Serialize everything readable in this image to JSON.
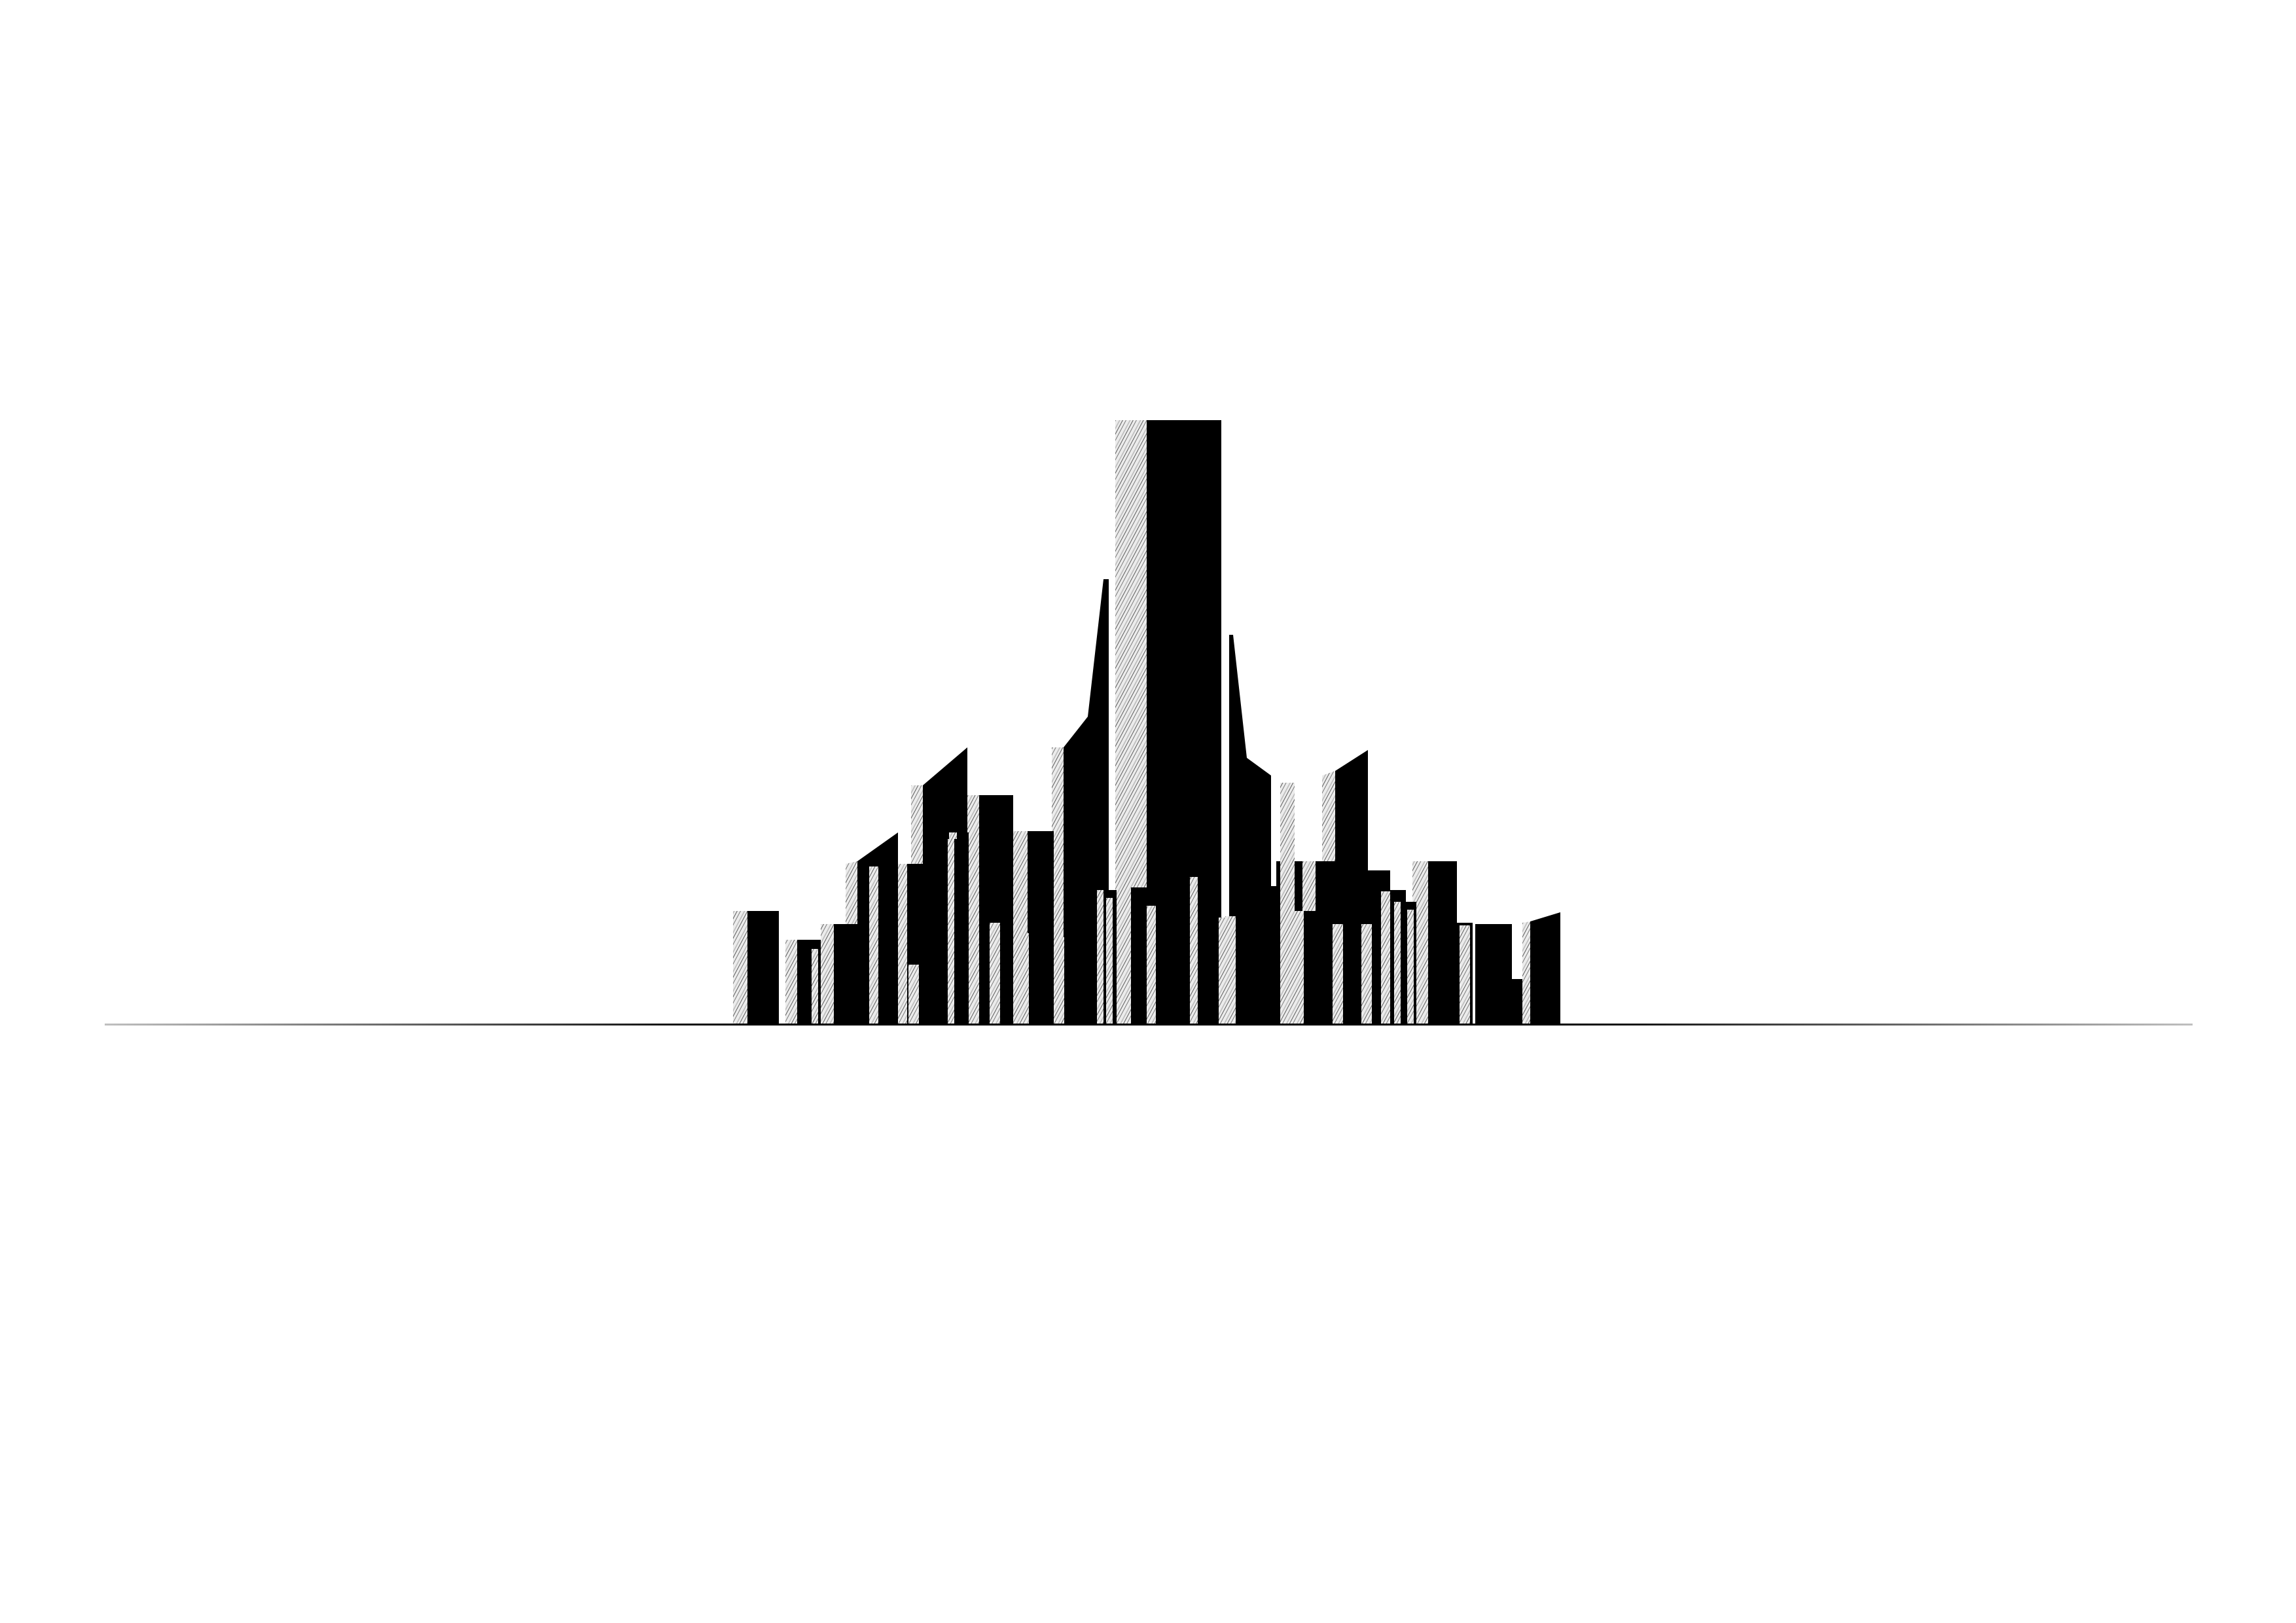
{
  "colors": {
    "background": "#ffffff",
    "building": "#000000",
    "facet_light": "#ececec",
    "facet_hatch": "#7a7a7a",
    "ground_line": "#000000"
  }
}
